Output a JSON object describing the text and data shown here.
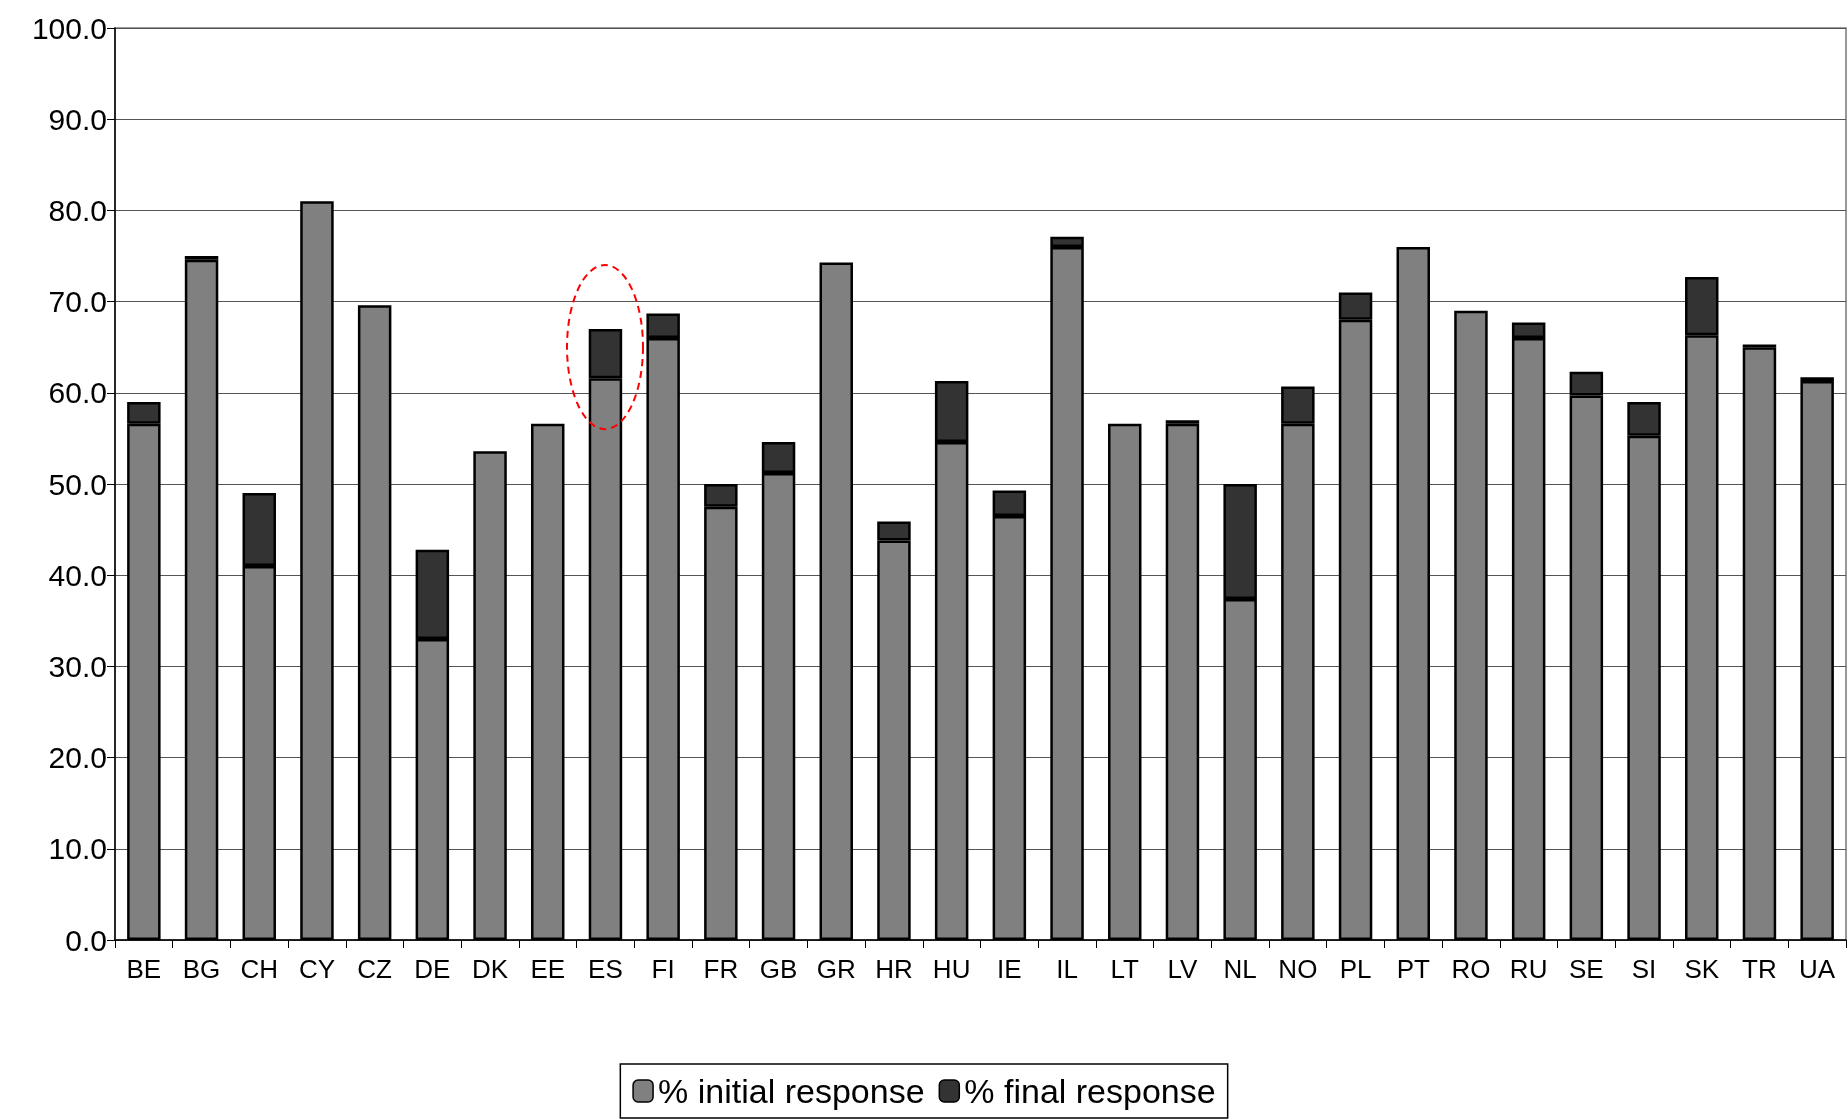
{
  "chart_data": {
    "type": "bar",
    "stacked": true,
    "categories": [
      "BE",
      "BG",
      "CH",
      "CY",
      "CZ",
      "DE",
      "DK",
      "EE",
      "ES",
      "FI",
      "FR",
      "GB",
      "GR",
      "HR",
      "HU",
      "IE",
      "IL",
      "LT",
      "LV",
      "NL",
      "NO",
      "PL",
      "PT",
      "RO",
      "RU",
      "SE",
      "SI",
      "SK",
      "TR",
      "UA"
    ],
    "series": [
      {
        "name": "% initial response",
        "color": "#808080",
        "values": [
          56.6,
          74.6,
          41.0,
          81.0,
          69.6,
          33.0,
          53.6,
          56.6,
          61.6,
          66.0,
          47.5,
          51.2,
          74.3,
          43.8,
          54.6,
          46.5,
          76.0,
          56.6,
          56.6,
          37.4,
          56.6,
          68.0,
          76.0,
          69.0,
          66.0,
          59.7,
          55.3,
          66.3,
          65.0,
          61.3
        ]
      },
      {
        "name": "% final response",
        "color": "#333333",
        "values": [
          2.4,
          0.4,
          8.0,
          null,
          null,
          9.8,
          null,
          null,
          5.4,
          2.7,
          2.5,
          3.4,
          null,
          2.1,
          6.7,
          2.8,
          1.1,
          null,
          0.4,
          12.6,
          4.1,
          3.0,
          null,
          null,
          1.7,
          2.6,
          3.7,
          6.4,
          0.3,
          0.4
        ]
      }
    ],
    "ylim": [
      0,
      100
    ],
    "yticks": [
      {
        "value": 0,
        "label": "0.0"
      },
      {
        "value": 10,
        "label": "10.0"
      },
      {
        "value": 20,
        "label": "20.0"
      },
      {
        "value": 30,
        "label": "30.0"
      },
      {
        "value": 40,
        "label": "40.0"
      },
      {
        "value": 50,
        "label": "50.0"
      },
      {
        "value": 60,
        "label": "60.0"
      },
      {
        "value": 70,
        "label": "70.0"
      },
      {
        "value": 80,
        "label": "80.0"
      },
      {
        "value": 90,
        "label": "90.0"
      },
      {
        "value": 100,
        "label": "100.0"
      }
    ],
    "grid": "y",
    "legend": "bottom"
  }
}
